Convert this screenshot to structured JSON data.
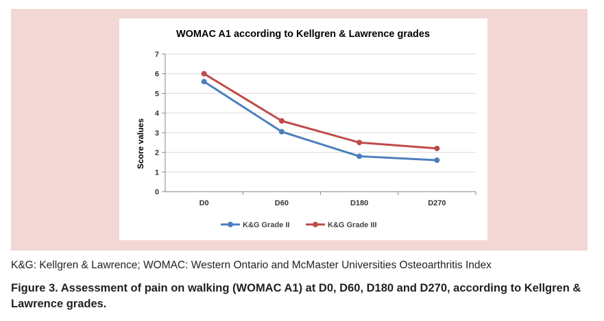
{
  "chart_data": {
    "type": "line",
    "title": "WOMAC A1 according to Kellgren & Lawrence grades",
    "xlabel": "",
    "ylabel": "Score values",
    "categories": [
      "D0",
      "D60",
      "D180",
      "D270"
    ],
    "ylim": [
      0,
      7
    ],
    "yticks": [
      "0",
      "1",
      "2",
      "3",
      "4",
      "5",
      "6",
      "7"
    ],
    "grid": true,
    "legend_position": "bottom",
    "series": [
      {
        "name": "K&G Grade II",
        "color": "#4a7ebb",
        "values": [
          5.6,
          3.05,
          1.8,
          1.6
        ]
      },
      {
        "name": "K&G Grade III",
        "color": "#be4b48",
        "values": [
          6.0,
          3.6,
          2.5,
          2.2
        ]
      }
    ]
  },
  "footnote": "K&G: Kellgren & Lawrence; WOMAC: Western Ontario and McMaster Universities Osteoarthritis Index",
  "caption": "Figure 3. Assessment of pain on walking (WOMAC A1) at D0, D60, D180 and D270, according to Kellgren & Lawrence grades.",
  "colors": {
    "panel_background": "#f2d7d4",
    "gridline": "#d9d9d9",
    "axis": "#868686"
  }
}
